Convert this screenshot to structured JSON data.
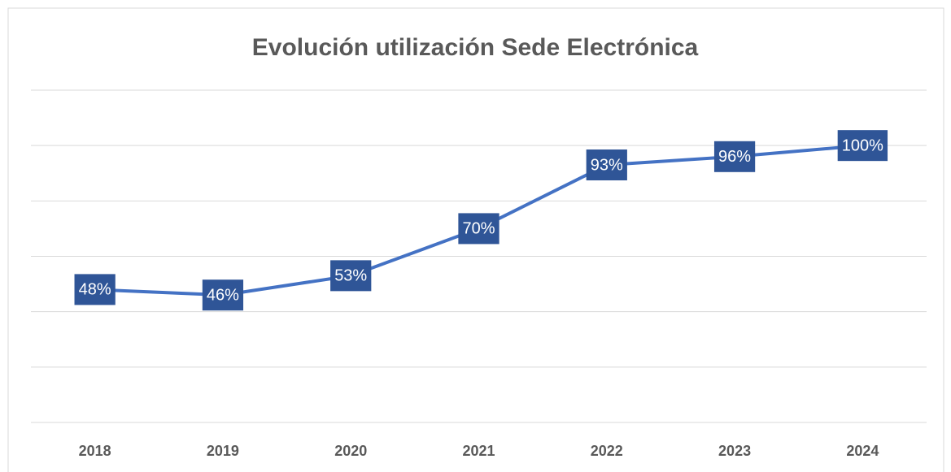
{
  "chart_data": {
    "type": "line",
    "title": "Evolución utilización Sede Electrónica",
    "categories": [
      "2018",
      "2019",
      "2020",
      "2021",
      "2022",
      "2023",
      "2024"
    ],
    "series": [
      {
        "color": "#4472c4",
        "values": [
          48,
          46,
          53,
          70,
          93,
          96,
          100
        ],
        "value_labels": [
          "48%",
          "46%",
          "53%",
          "70%",
          "93%",
          "96%",
          "100%"
        ]
      }
    ],
    "ylim": [
      0,
      120
    ],
    "yticks": [
      0,
      20,
      40,
      60,
      80,
      100,
      120
    ],
    "grid": true
  }
}
